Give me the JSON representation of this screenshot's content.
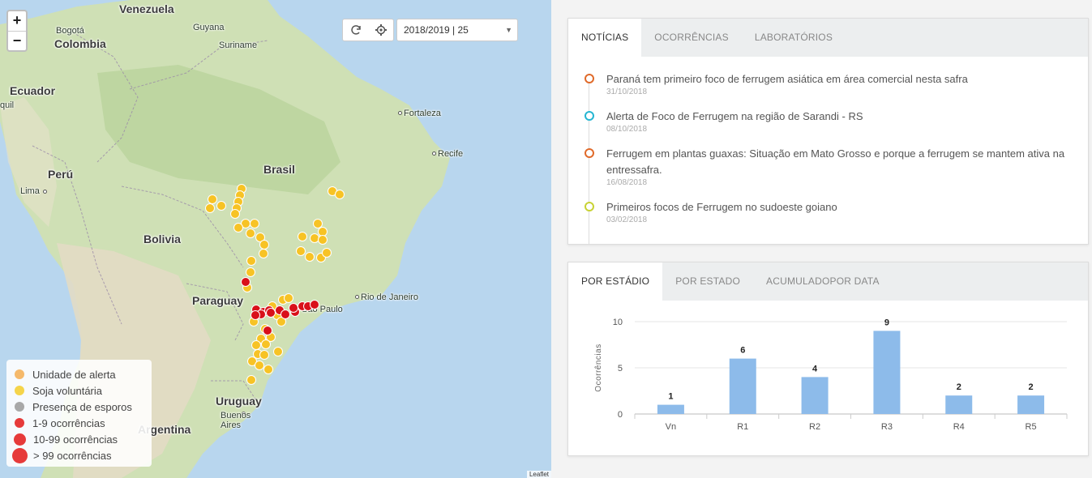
{
  "map": {
    "zoom_in": "+",
    "zoom_out": "−",
    "season_value": "2018/2019 | 25",
    "refresh_icon": "refresh-icon",
    "settings_icon": "gear-icon",
    "attribution": "Leaflet",
    "countries": [
      "Venezuela",
      "Colombia",
      "Ecuador",
      "Perú",
      "Bolivia",
      "Brasil",
      "Paraguay",
      "Uruguay",
      "Argentina"
    ],
    "cities": [
      "Bogotá",
      "Guyana",
      "Suriname",
      "Fortaleza",
      "Recife",
      "Lima",
      "Rio de Janeiro",
      "São Paulo",
      "Buenos Aires",
      "quil"
    ],
    "legend": [
      {
        "label": "Unidade de alerta",
        "color": "#f5b96b"
      },
      {
        "label": "Soja voluntária",
        "color": "#f5d44a"
      },
      {
        "label": "Presença de esporos",
        "color": "#a8a8a8"
      },
      {
        "label": "1-9 ocorrências",
        "color": "#e63a3a"
      },
      {
        "label": "10-99 ocorrências",
        "color": "#e63a3a"
      },
      {
        "label": "> 99 ocorrências",
        "color": "#e63a3a"
      }
    ],
    "colors": {
      "water": "#b8d6ee",
      "land": "#cfe0b5",
      "yellow_marker": "#f7c325",
      "red_marker": "#d9101a"
    }
  },
  "news": {
    "tabs": [
      "NOTÍCIAS",
      "OCORRÊNCIAS",
      "LABORATÓRIOS"
    ],
    "items": [
      {
        "title": "Paraná tem primeiro foco de ferrugem asiática em área comercial nesta safra",
        "date": "31/10/2018",
        "color": "#e06a2a"
      },
      {
        "title": "Alerta de Foco de Ferrugem na região de Sarandi - RS",
        "date": "08/10/2018",
        "color": "#25b6d2"
      },
      {
        "title": "Ferrugem em plantas guaxas: Situação em Mato Grosso e porque a ferrugem se mantem ativa na entressafra.",
        "date": "16/08/2018",
        "color": "#e06a2a"
      },
      {
        "title": "Primeiros focos de Ferrugem no sudoeste goiano",
        "date": "03/02/2018",
        "color": "#c8d234"
      }
    ]
  },
  "stats": {
    "tabs": [
      "POR ESTÁDIO",
      "POR ESTADO",
      "ACUMULADOPOR DATA"
    ]
  },
  "chart_data": {
    "type": "bar",
    "categories": [
      "Vn",
      "R1",
      "R2",
      "R3",
      "R4",
      "R5"
    ],
    "values": [
      1,
      6,
      4,
      9,
      2,
      2
    ],
    "ylabel": "Ocorrências",
    "ylim": [
      0,
      10
    ],
    "yticks": [
      0,
      5,
      10
    ],
    "bar_color": "#8dbbea",
    "grid": true
  }
}
